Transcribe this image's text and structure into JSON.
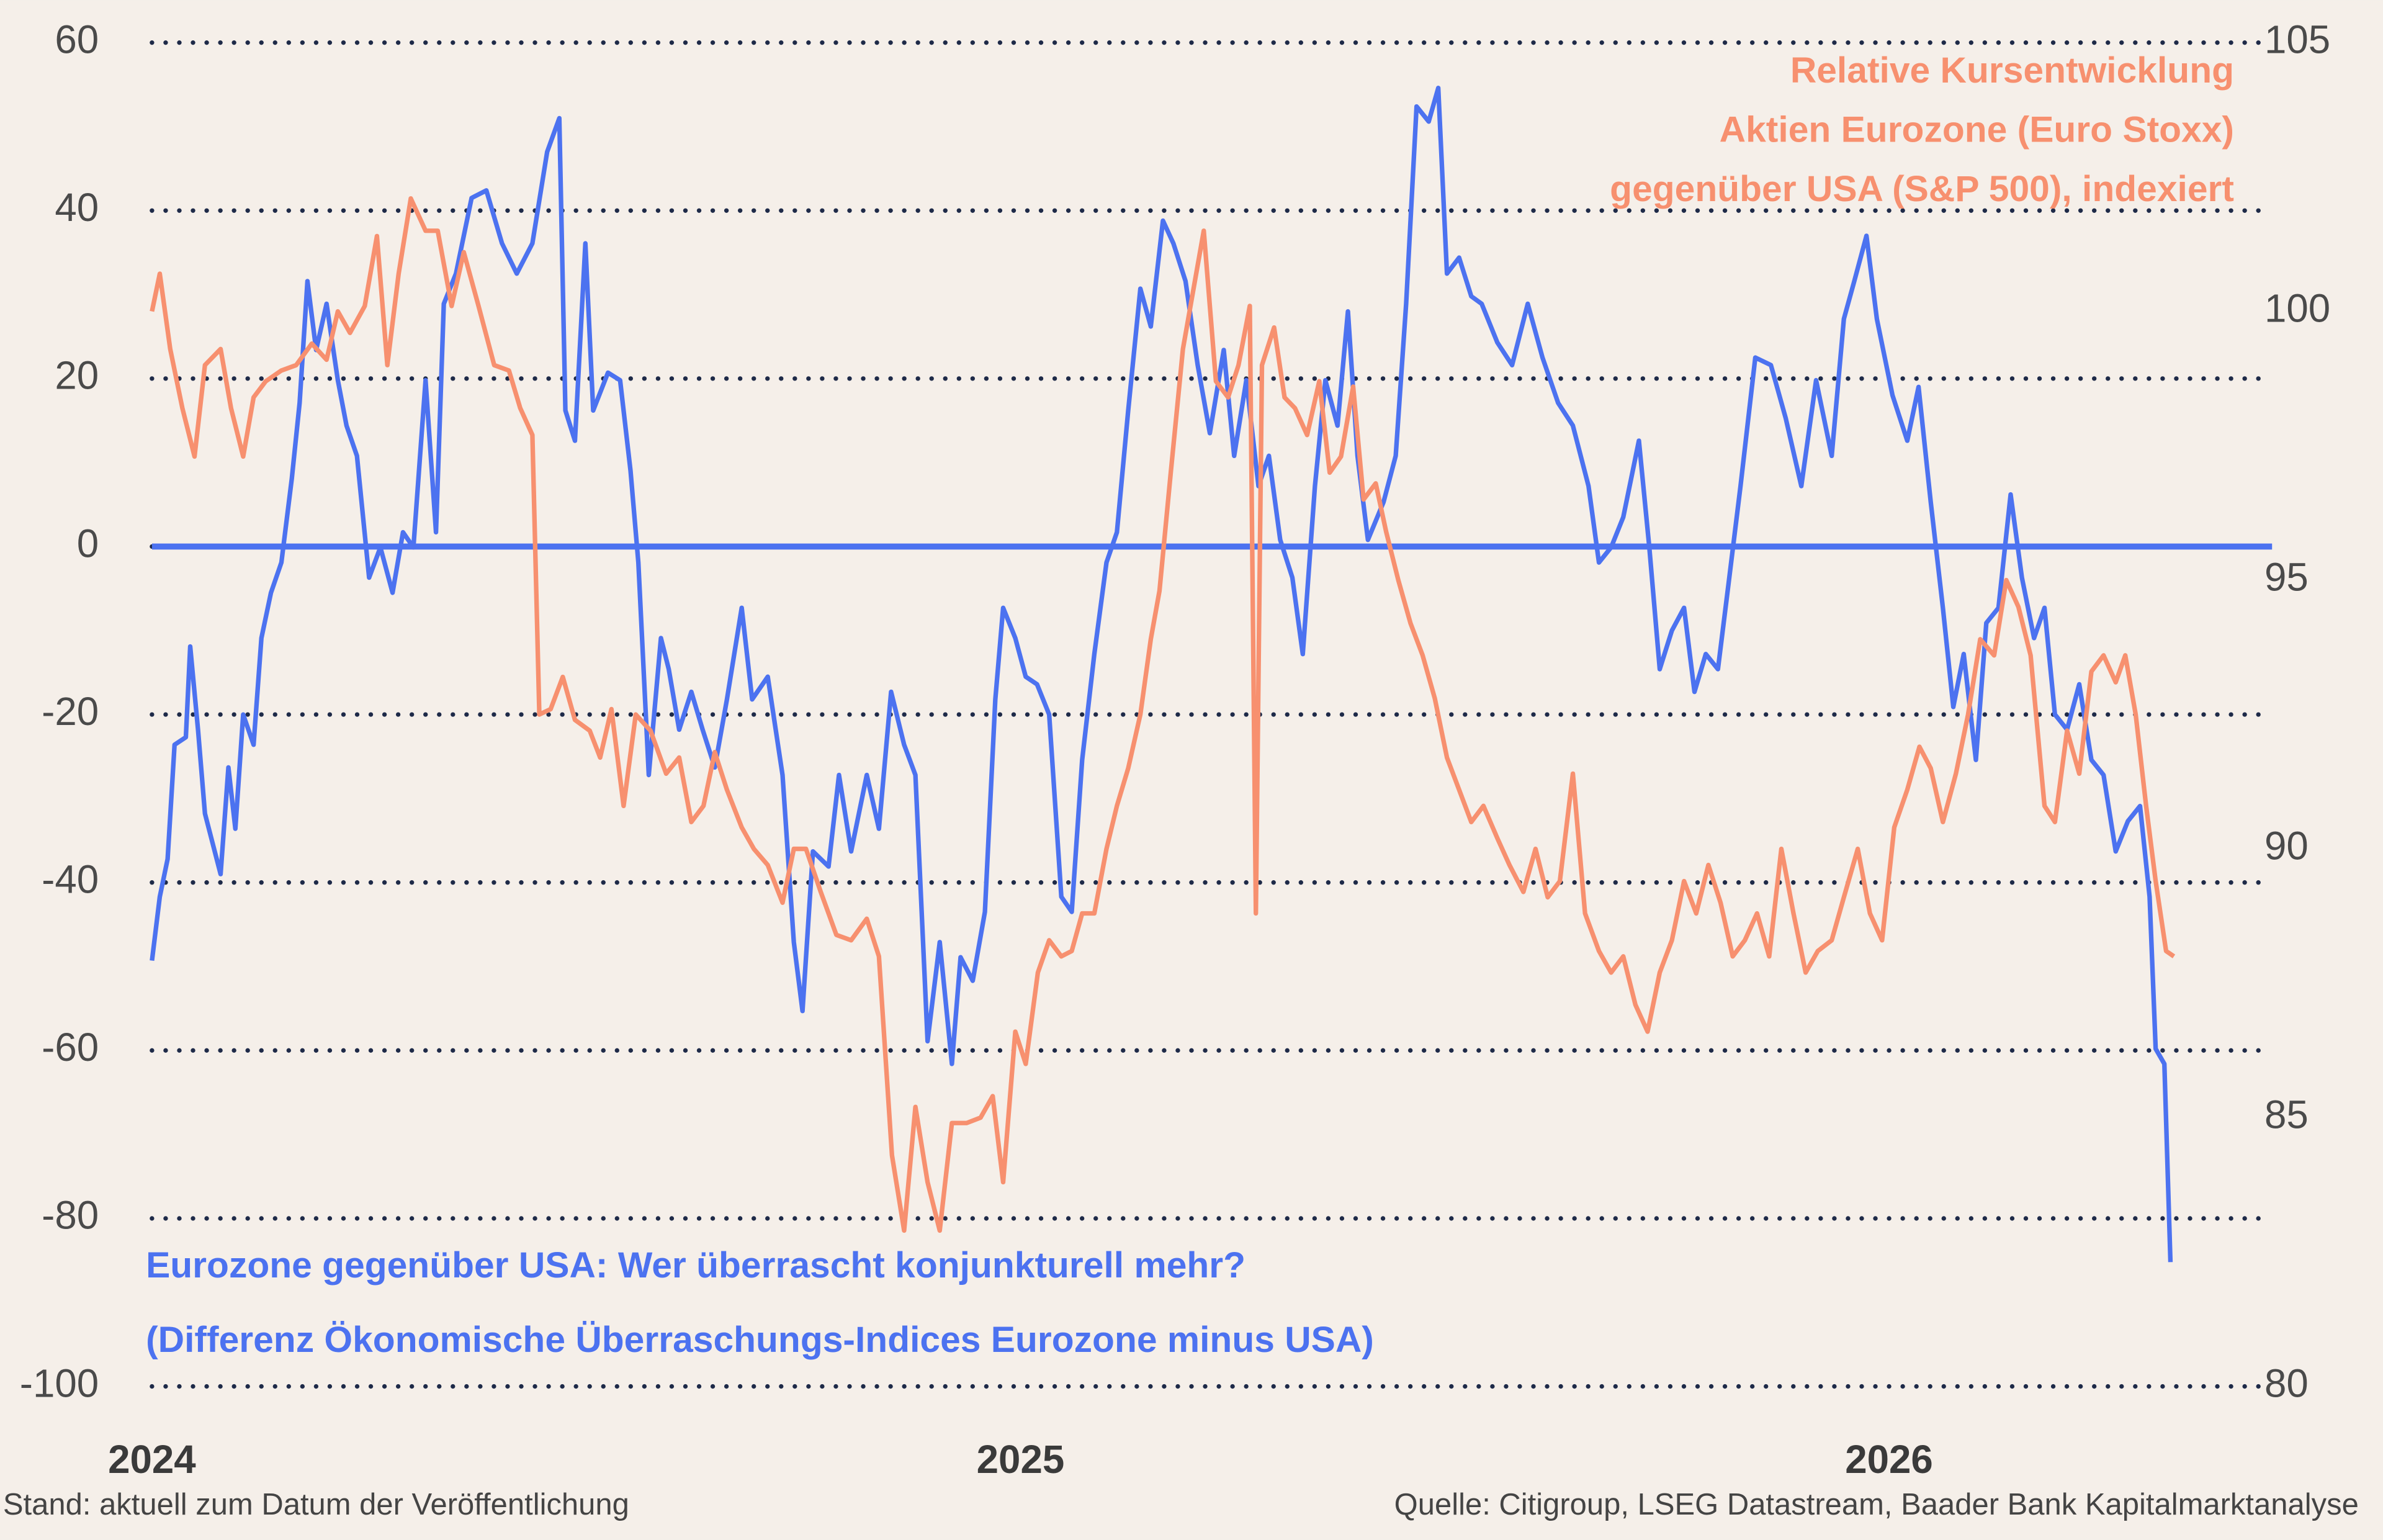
{
  "chart_data": {
    "type": "line",
    "series": [
      {
        "name": [
          "Eurozone gegenüber USA: Wer überrascht konjunkturell mehr?",
          "(Differenz Ökonomische Überraschungs-Indices Eurozone minus USA)"
        ],
        "color": "#4c72f0",
        "axis": "y",
        "x": [
          2024,
          2024.009,
          2024.018,
          2024.026,
          2024.039,
          2024.044,
          2024.053,
          2024.061,
          2024.079,
          2024.088,
          2024.096,
          2024.105,
          2024.117,
          2024.126,
          2024.137,
          2024.149,
          2024.161,
          2024.17,
          2024.179,
          2024.189,
          2024.201,
          2024.214,
          2024.224,
          2024.236,
          2024.25,
          2024.263,
          2024.277,
          2024.289,
          2024.301,
          2024.315,
          2024.327,
          2024.336,
          2024.35,
          2024.368,
          2024.385,
          2024.403,
          2024.42,
          2024.438,
          2024.455,
          2024.469,
          2024.476,
          2024.487,
          2024.499,
          2024.508,
          2024.525,
          2024.539,
          2024.551,
          2024.56,
          2024.572,
          2024.586,
          2024.595,
          2024.607,
          2024.621,
          2024.634,
          2024.648,
          2024.662,
          2024.679,
          2024.691,
          2024.709,
          2024.726,
          2024.739,
          2024.749,
          2024.761,
          2024.779,
          2024.791,
          2024.805,
          2024.823,
          2024.837,
          2024.851,
          2024.866,
          2024.879,
          2024.893,
          2024.907,
          2024.921,
          2024.931,
          2024.945,
          2024.959,
          2024.971,
          2024.98,
          2024.994,
          2025.006,
          2025.019,
          2025.033,
          2025.047,
          2025.059,
          2025.071,
          2025.085,
          2025.099,
          2025.111,
          2025.124,
          2025.138,
          2025.15,
          2025.164,
          2025.176,
          2025.19,
          2025.204,
          2025.218,
          2025.234,
          2025.246,
          2025.26,
          2025.274,
          2025.286,
          2025.299,
          2025.313,
          2025.325,
          2025.339,
          2025.351,
          2025.365,
          2025.377,
          2025.388,
          2025.4,
          2025.418,
          2025.432,
          2025.444,
          2025.456,
          2025.47,
          2025.481,
          2025.491,
          2025.505,
          2025.519,
          2025.531,
          2025.549,
          2025.566,
          2025.584,
          2025.601,
          2025.619,
          2025.636,
          2025.654,
          2025.666,
          2025.68,
          2025.694,
          2025.712,
          2025.724,
          2025.736,
          2025.75,
          2025.764,
          2025.776,
          2025.789,
          2025.803,
          2025.815,
          2025.829,
          2025.846,
          2025.864,
          2025.881,
          2025.899,
          2025.916,
          2025.934,
          2025.948,
          2025.96,
          2025.974,
          2025.986,
          2026.004,
          2026.021,
          2026.034,
          2026.048,
          2026.062,
          2026.074,
          2026.086,
          2026.1,
          2026.112,
          2026.126,
          2026.14,
          2026.153,
          2026.167,
          2026.179,
          2026.191,
          2026.205,
          2026.219,
          2026.233,
          2026.247,
          2026.261,
          2026.275,
          2026.289,
          2026.3,
          2026.307,
          2026.317,
          2026.324
        ],
        "values": [
          -49.3,
          -41.7,
          -37.2,
          -23.6,
          -22.7,
          -11.9,
          -21.8,
          -31.8,
          -39.0,
          -26.3,
          -33.6,
          -20.0,
          -23.6,
          -10.9,
          -5.5,
          -1.9,
          8.1,
          17.1,
          31.6,
          23.4,
          28.9,
          19.8,
          14.4,
          10.8,
          -3.7,
          -0.1,
          -5.5,
          1.7,
          -0.1,
          19.8,
          1.7,
          28.9,
          32.5,
          41.5,
          42.4,
          36.1,
          32.5,
          36.1,
          47.0,
          51.0,
          16.2,
          12.6,
          36.1,
          16.2,
          20.7,
          19.8,
          9.0,
          -1.9,
          -27.2,
          -10.9,
          -14.6,
          -21.8,
          -17.3,
          -21.8,
          -26.3,
          -18.2,
          -7.3,
          -18.2,
          -15.5,
          -27.2,
          -47.1,
          -55.3,
          -36.3,
          -38.1,
          -27.2,
          -36.3,
          -27.2,
          -33.6,
          -17.3,
          -23.6,
          -27.2,
          -58.9,
          -47.1,
          -61.6,
          -48.9,
          -51.7,
          -43.5,
          -18.2,
          -7.3,
          -10.9,
          -15.5,
          -16.4,
          -20.0,
          -41.7,
          -43.5,
          -25.4,
          -12.8,
          -1.9,
          1.7,
          16.2,
          30.7,
          26.2,
          38.8,
          36.1,
          31.6,
          21.6,
          13.5,
          23.4,
          10.8,
          19.8,
          7.2,
          10.8,
          0.8,
          -3.7,
          -12.8,
          7.2,
          19.8,
          14.4,
          28.0,
          10.8,
          0.8,
          5.3,
          10.8,
          28.9,
          52.4,
          50.6,
          54.6,
          32.5,
          34.4,
          29.8,
          28.9,
          24.3,
          21.6,
          28.9,
          22.5,
          17.1,
          14.4,
          7.2,
          -1.9,
          -0.1,
          3.5,
          12.6,
          -0.1,
          -14.6,
          -10.0,
          -7.3,
          -17.3,
          -12.8,
          -14.6,
          -4.6,
          7.2,
          22.5,
          21.6,
          15.3,
          7.2,
          19.8,
          10.8,
          27.1,
          31.6,
          37.0,
          27.1,
          18.0,
          12.6,
          19.0,
          5.3,
          -7.3,
          -19.1,
          -12.8,
          -25.4,
          -9.1,
          -7.3,
          6.2,
          -3.7,
          -10.9,
          -7.3,
          -20.0,
          -21.8,
          -16.4,
          -25.4,
          -27.2,
          -36.3,
          -32.7,
          -30.9,
          -41.7,
          -59.8,
          -61.6,
          -85.2
        ]
      },
      {
        "name": [
          "Relative Kursentwicklung",
          "Aktien Eurozone (Euro Stoxx)",
          "gegenüber USA (S&P 500), indexiert"
        ],
        "color": "#f7906f",
        "axis": "y2",
        "x": [
          2024,
          2024.009,
          2024.021,
          2024.035,
          2024.049,
          2024.061,
          2024.079,
          2024.091,
          2024.105,
          2024.117,
          2024.131,
          2024.149,
          2024.166,
          2024.184,
          2024.201,
          2024.214,
          2024.228,
          2024.245,
          2024.259,
          2024.271,
          2024.284,
          2024.298,
          2024.315,
          2024.329,
          2024.345,
          2024.359,
          2024.376,
          2024.394,
          2024.411,
          2024.424,
          2024.438,
          2024.446,
          2024.459,
          2024.473,
          2024.487,
          2024.504,
          2024.516,
          2024.529,
          2024.543,
          2024.557,
          2024.574,
          2024.592,
          2024.607,
          2024.621,
          2024.635,
          2024.648,
          2024.662,
          2024.679,
          2024.693,
          2024.709,
          2024.726,
          2024.739,
          2024.753,
          2024.77,
          2024.788,
          2024.805,
          2024.823,
          2024.837,
          2024.852,
          2024.866,
          2024.879,
          2024.893,
          2024.907,
          2024.921,
          2024.938,
          2024.954,
          2024.968,
          2024.98,
          2024.994,
          2025.006,
          2025.02,
          2025.033,
          2025.047,
          2025.059,
          2025.071,
          2025.085,
          2025.099,
          2025.111,
          2025.124,
          2025.138,
          2025.15,
          2025.16,
          2025.173,
          2025.187,
          2025.199,
          2025.211,
          2025.225,
          2025.239,
          2025.251,
          2025.264,
          2025.271,
          2025.278,
          2025.292,
          2025.304,
          2025.316,
          2025.33,
          2025.344,
          2025.356,
          2025.369,
          2025.383,
          2025.395,
          2025.409,
          2025.421,
          2025.435,
          2025.449,
          2025.463,
          2025.477,
          2025.491,
          2025.505,
          2025.519,
          2025.533,
          2025.549,
          2025.563,
          2025.579,
          2025.593,
          2025.607,
          2025.621,
          2025.636,
          2025.65,
          2025.666,
          2025.68,
          2025.694,
          2025.708,
          2025.722,
          2025.736,
          2025.75,
          2025.764,
          2025.778,
          2025.792,
          2025.806,
          2025.82,
          2025.834,
          2025.848,
          2025.862,
          2025.876,
          2025.89,
          2025.904,
          2025.918,
          2025.934,
          2025.948,
          2025.964,
          2025.978,
          2025.992,
          2026.006,
          2026.021,
          2026.035,
          2026.048,
          2026.062,
          2026.077,
          2026.091,
          2026.105,
          2026.121,
          2026.135,
          2026.149,
          2026.163,
          2026.179,
          2026.191,
          2026.205,
          2026.219,
          2026.233,
          2026.247,
          2026.261,
          2026.272,
          2026.284,
          2026.296,
          2026.307,
          2026.319,
          2026.328
        ],
        "values": [
          100.0,
          100.7,
          99.3,
          98.2,
          97.3,
          99.0,
          99.3,
          98.2,
          97.3,
          98.4,
          98.7,
          98.9,
          99.0,
          99.4,
          99.1,
          100.0,
          99.6,
          100.1,
          101.4,
          99.0,
          100.7,
          102.1,
          101.5,
          101.5,
          100.1,
          101.1,
          100.1,
          99.0,
          98.9,
          98.2,
          97.7,
          92.5,
          92.6,
          93.2,
          92.4,
          92.2,
          91.7,
          92.6,
          90.8,
          92.5,
          92.2,
          91.4,
          91.7,
          90.5,
          90.8,
          91.8,
          91.1,
          90.4,
          90.0,
          89.7,
          89.0,
          90.0,
          90.0,
          89.2,
          88.4,
          88.3,
          88.7,
          88.0,
          84.3,
          82.9,
          85.2,
          83.8,
          82.9,
          84.9,
          84.9,
          85.0,
          85.4,
          83.8,
          86.6,
          86.0,
          87.7,
          88.3,
          88.0,
          88.1,
          88.8,
          88.8,
          90.0,
          90.8,
          91.5,
          92.5,
          93.9,
          94.8,
          97.0,
          99.3,
          100.4,
          101.5,
          98.7,
          98.4,
          99.0,
          100.1,
          88.8,
          99.0,
          99.7,
          98.4,
          98.2,
          97.7,
          98.7,
          97.0,
          97.3,
          98.6,
          96.5,
          96.8,
          95.9,
          95.0,
          94.2,
          93.6,
          92.8,
          91.7,
          91.1,
          90.5,
          90.8,
          90.2,
          89.7,
          89.2,
          90.0,
          89.1,
          89.4,
          91.4,
          88.8,
          88.1,
          87.7,
          88.0,
          87.1,
          86.6,
          87.7,
          88.3,
          89.4,
          88.8,
          89.7,
          89.0,
          88.0,
          88.3,
          88.8,
          88.0,
          90.0,
          88.8,
          87.7,
          88.1,
          88.3,
          89.1,
          90.0,
          88.8,
          88.3,
          90.4,
          91.1,
          91.9,
          91.5,
          90.5,
          91.4,
          92.5,
          93.9,
          93.6,
          95.0,
          94.5,
          93.6,
          90.8,
          90.5,
          92.2,
          91.4,
          93.3,
          93.6,
          93.1,
          93.6,
          92.5,
          90.8,
          89.4,
          88.1,
          88.0
        ]
      }
    ],
    "xlim": [
      2024,
      2026.441
    ],
    "xticks": [
      2024,
      2025,
      2026
    ],
    "ylim": [
      -100,
      60
    ],
    "yticks": [
      -100,
      -80,
      -60,
      -40,
      -20,
      0,
      20,
      40,
      60
    ],
    "y2lim": [
      80,
      105
    ],
    "y2ticks": [
      80,
      85,
      90,
      95,
      100,
      105
    ],
    "grid": true,
    "zero_line": true,
    "zero_line_color": "#4c72f0",
    "grid_color": "#1e2a48",
    "note": "Stand: aktuell zum Datum der Veröffentlichung",
    "source": "Quelle: Citigroup, LSEG Datastream, Baader Bank Kapitalmarktanalyse"
  }
}
